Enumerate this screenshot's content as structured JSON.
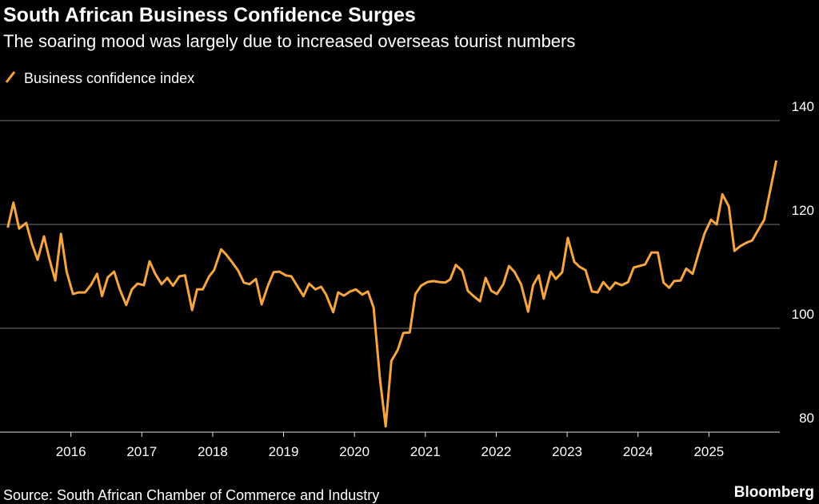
{
  "chart_data": {
    "type": "line",
    "title": "South African Business Confidence Surges",
    "subtitle": "The soaring mood was largely due to increased overseas tourist numbers",
    "source": "Source: South African Chamber of Commerce and Industry",
    "brand": "Bloomberg",
    "x": [
      2015.11,
      2015.19,
      2015.27,
      2015.37,
      2015.45,
      2015.53,
      2015.62,
      2015.7,
      2015.78,
      2015.86,
      2015.94,
      2016.03,
      2016.11,
      2016.2,
      2016.28,
      2016.37,
      2016.44,
      2016.52,
      2016.61,
      2016.69,
      2016.78,
      2016.86,
      2016.94,
      2017.03,
      2017.11,
      2017.19,
      2017.28,
      2017.36,
      2017.44,
      2017.53,
      2017.61,
      2017.71,
      2017.78,
      2017.86,
      2017.95,
      2018.02,
      2018.12,
      2018.19,
      2018.27,
      2018.36,
      2018.44,
      2018.52,
      2018.61,
      2018.69,
      2018.78,
      2018.86,
      2018.94,
      2019.03,
      2019.11,
      2019.19,
      2019.28,
      2019.36,
      2019.45,
      2019.53,
      2019.6,
      2019.7,
      2019.77,
      2019.85,
      2019.94,
      2020.02,
      2020.11,
      2020.19,
      2020.27,
      2020.36,
      2020.44,
      2020.52,
      2020.61,
      2020.69,
      2020.78,
      2020.86,
      2020.94,
      2021.03,
      2021.11,
      2021.2,
      2021.28,
      2021.35,
      2021.43,
      2021.52,
      2021.6,
      2021.68,
      2021.77,
      2021.85,
      2021.93,
      2022.01,
      2022.1,
      2022.18,
      2022.26,
      2022.35,
      2022.45,
      2022.52,
      2022.6,
      2022.67,
      2022.77,
      2022.84,
      2022.93,
      2023.01,
      2023.1,
      2023.18,
      2023.26,
      2023.35,
      2023.43,
      2023.51,
      2023.6,
      2023.68,
      2023.77,
      2023.86,
      2023.94,
      2024.02,
      2024.1,
      2024.19,
      2024.28,
      2024.36,
      2024.44,
      2024.51,
      2024.6,
      2024.68,
      2024.77,
      2024.85,
      2024.94,
      2025.03,
      2025.11,
      2025.19,
      2025.28,
      2025.36,
      2025.44,
      2025.53,
      2025.61,
      2025.69,
      2025.78,
      2025.86,
      2025.95
    ],
    "series": [
      {
        "name": "Business confidence index",
        "color": "#f7a541",
        "values": [
          119.4,
          124.2,
          119.2,
          120.3,
          116.3,
          113.2,
          117.7,
          113.2,
          109.2,
          118.2,
          110.9,
          106.6,
          106.9,
          106.9,
          108.3,
          110.5,
          106.2,
          109.8,
          110.9,
          107.5,
          104.5,
          107.5,
          108.6,
          108.3,
          112.9,
          110.5,
          108.5,
          109.7,
          108.2,
          110.0,
          110.2,
          103.5,
          107.5,
          107.5,
          110.0,
          111.2,
          115.2,
          114.2,
          112.8,
          111.1,
          108.8,
          108.5,
          109.5,
          104.6,
          108.2,
          110.8,
          110.9,
          110.2,
          110.0,
          108.2,
          106.2,
          108.6,
          107.5,
          108.0,
          106.5,
          103.1,
          106.9,
          106.3,
          107.1,
          107.5,
          106.5,
          107.1,
          104.0,
          90.2,
          81.1,
          93.7,
          95.8,
          99.1,
          99.2,
          106.6,
          108.2,
          108.9,
          109.1,
          108.9,
          108.8,
          109.4,
          112.2,
          111.1,
          107.2,
          106.2,
          105.2,
          109.7,
          107.2,
          106.6,
          108.5,
          112.0,
          110.8,
          108.5,
          103.2,
          108.3,
          110.2,
          105.7,
          110.9,
          109.5,
          110.8,
          117.4,
          112.8,
          111.8,
          111.2,
          107.1,
          106.9,
          108.9,
          107.5,
          108.8,
          108.3,
          108.9,
          111.7,
          112.0,
          112.3,
          114.6,
          114.6,
          108.8,
          107.8,
          109.1,
          109.2,
          111.5,
          110.5,
          114.3,
          118.3,
          120.9,
          120.0,
          125.8,
          123.5,
          114.9,
          115.8,
          116.5,
          116.9,
          118.8,
          120.9,
          126.3,
          132.3
        ]
      }
    ],
    "xlim": [
      2015,
      2026
    ],
    "xticks": [
      2016,
      2017,
      2018,
      2019,
      2020,
      2021,
      2022,
      2023,
      2024,
      2025
    ],
    "ylim": [
      80,
      140
    ],
    "yticks": [
      80,
      100,
      120,
      140
    ],
    "grid": true
  }
}
